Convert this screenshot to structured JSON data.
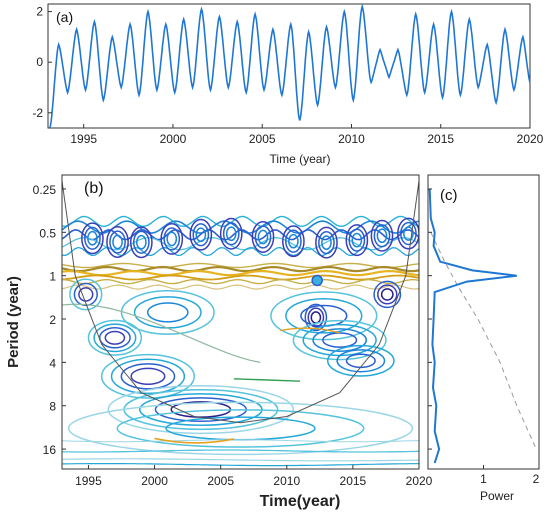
{
  "chart_data": [
    {
      "type": "line",
      "panel_label": "(a)",
      "xlabel": "Time (year)",
      "ylabel": "",
      "xlim": [
        1993,
        2020
      ],
      "ylim": [
        -2.6,
        2.3
      ],
      "x_ticks": [
        "1995",
        "2000",
        "2005",
        "2010",
        "2015",
        "2020"
      ],
      "y_ticks": [
        "2",
        "0",
        "-2"
      ],
      "color": "#1f77d4",
      "cycle_period_years": 1,
      "annual_peaks": [
        {
          "x": 1993.6,
          "y": 0.7
        },
        {
          "x": 1994.6,
          "y": 1.3
        },
        {
          "x": 1995.6,
          "y": 1.6
        },
        {
          "x": 1996.6,
          "y": 1.0
        },
        {
          "x": 1997.6,
          "y": 1.5
        },
        {
          "x": 1998.6,
          "y": 2.0
        },
        {
          "x": 1999.6,
          "y": 1.5
        },
        {
          "x": 2000.6,
          "y": 1.7
        },
        {
          "x": 2001.6,
          "y": 2.1
        },
        {
          "x": 2002.6,
          "y": 1.8
        },
        {
          "x": 2003.6,
          "y": 1.6
        },
        {
          "x": 2004.6,
          "y": 1.9
        },
        {
          "x": 2005.6,
          "y": 1.3
        },
        {
          "x": 2006.6,
          "y": 1.5
        },
        {
          "x": 2007.6,
          "y": 1.2
        },
        {
          "x": 2008.6,
          "y": 1.4
        },
        {
          "x": 2009.6,
          "y": 2.0
        },
        {
          "x": 2010.6,
          "y": 2.2
        },
        {
          "x": 2011.6,
          "y": 0.5
        },
        {
          "x": 2012.6,
          "y": 0.5
        },
        {
          "x": 2013.6,
          "y": 1.9
        },
        {
          "x": 2014.6,
          "y": 1.5
        },
        {
          "x": 2015.6,
          "y": 2.0
        },
        {
          "x": 2016.6,
          "y": 1.7
        },
        {
          "x": 2017.6,
          "y": 0.7
        },
        {
          "x": 2018.6,
          "y": 1.3
        },
        {
          "x": 2019.6,
          "y": 1.0
        }
      ],
      "annual_troughs": [
        {
          "x": 1993.1,
          "y": -2.6
        },
        {
          "x": 1994.1,
          "y": -1.2
        },
        {
          "x": 1995.1,
          "y": -1.1
        },
        {
          "x": 1996.1,
          "y": -1.5
        },
        {
          "x": 1997.1,
          "y": -1.0
        },
        {
          "x": 1998.1,
          "y": -1.3
        },
        {
          "x": 1999.1,
          "y": -1.1
        },
        {
          "x": 2000.1,
          "y": -1.2
        },
        {
          "x": 2001.1,
          "y": -1.0
        },
        {
          "x": 2002.1,
          "y": -1.1
        },
        {
          "x": 2003.1,
          "y": -1.0
        },
        {
          "x": 2004.1,
          "y": -1.2
        },
        {
          "x": 2005.1,
          "y": -1.1
        },
        {
          "x": 2006.1,
          "y": -1.3
        },
        {
          "x": 2007.1,
          "y": -2.3
        },
        {
          "x": 2008.1,
          "y": -1.7
        },
        {
          "x": 2009.1,
          "y": -1.0
        },
        {
          "x": 2010.1,
          "y": -1.5
        },
        {
          "x": 2011.1,
          "y": -0.8
        },
        {
          "x": 2012.1,
          "y": -0.6
        },
        {
          "x": 2013.1,
          "y": -1.3
        },
        {
          "x": 2014.1,
          "y": -1.2
        },
        {
          "x": 2015.1,
          "y": -1.4
        },
        {
          "x": 2016.1,
          "y": -1.3
        },
        {
          "x": 2017.1,
          "y": -1.0
        },
        {
          "x": 2018.1,
          "y": -1.6
        },
        {
          "x": 2019.1,
          "y": -1.1
        },
        {
          "x": 2020.0,
          "y": -0.8
        }
      ]
    },
    {
      "type": "contour",
      "panel_label": "(b)",
      "xlabel": "Time(year)",
      "ylabel": "Period (year)",
      "xlim": [
        1993,
        2020
      ],
      "ylim": [
        0.2,
        22
      ],
      "y_scale": "log2",
      "y_reversed": true,
      "x_ticks": [
        "1995",
        "2000",
        "2005",
        "2010",
        "2015",
        "2020"
      ],
      "y_ticks": [
        "0.25",
        "0.5",
        "1",
        "2",
        "4",
        "8",
        "16"
      ],
      "colormap": "parula",
      "features": [
        {
          "desc": "strong annual band",
          "period": 1.0,
          "x_range": [
            1993,
            2020
          ],
          "color": "#e6b422"
        },
        {
          "desc": "semi-annual cells",
          "period": 0.5,
          "x_range": [
            1993,
            2020
          ],
          "color": "#2a6fd6"
        },
        {
          "desc": "quasi-biennial cells",
          "period": 2.0,
          "x_range": [
            1994,
            2019
          ],
          "color": "#2bb3d6"
        },
        {
          "desc": "interannual cells",
          "period": 4.5,
          "x_range": [
            1996,
            2018
          ],
          "color": "#1f9fd8"
        },
        {
          "desc": "decadal band",
          "period": 8.5,
          "x_range": [
            1998,
            2010
          ],
          "color": "#3060c8"
        }
      ],
      "cone_of_influence": [
        {
          "x": 1993.0,
          "period": 0.22
        },
        {
          "x": 1994.0,
          "period": 1.0
        },
        {
          "x": 1996.0,
          "period": 3.0
        },
        {
          "x": 1999.0,
          "period": 6.5
        },
        {
          "x": 2003.0,
          "period": 9.5
        },
        {
          "x": 2006.5,
          "period": 10.5
        },
        {
          "x": 2010.0,
          "period": 9.5
        },
        {
          "x": 2014.0,
          "period": 6.5
        },
        {
          "x": 2017.0,
          "period": 3.0
        },
        {
          "x": 2019.0,
          "period": 1.0
        },
        {
          "x": 2020.0,
          "period": 0.22
        }
      ]
    },
    {
      "type": "line",
      "panel_label": "(c)",
      "xlabel": "Power",
      "ylabel": "",
      "xlim": [
        0,
        2
      ],
      "x_ticks": [
        "1",
        "2"
      ],
      "y_scale": "log2",
      "y_reversed": true,
      "series": [
        {
          "role": "global wavelet power",
          "style": "solid",
          "color": "#1f77d4",
          "points": [
            {
              "power": 0.03,
              "period": 0.25
            },
            {
              "power": 0.05,
              "period": 0.4
            },
            {
              "power": 0.12,
              "period": 0.5
            },
            {
              "power": 0.1,
              "period": 0.62
            },
            {
              "power": 0.22,
              "period": 0.8
            },
            {
              "power": 0.8,
              "period": 0.92
            },
            {
              "power": 1.6,
              "period": 1.0
            },
            {
              "power": 0.7,
              "period": 1.1
            },
            {
              "power": 0.12,
              "period": 1.3
            },
            {
              "power": 0.1,
              "period": 2.0
            },
            {
              "power": 0.08,
              "period": 3.0
            },
            {
              "power": 0.12,
              "period": 4.0
            },
            {
              "power": 0.09,
              "period": 6.0
            },
            {
              "power": 0.15,
              "period": 8.0
            },
            {
              "power": 0.12,
              "period": 12.0
            },
            {
              "power": 0.2,
              "period": 16.0
            },
            {
              "power": 0.12,
              "period": 20.0
            }
          ]
        },
        {
          "role": "significance level",
          "style": "dashed",
          "color": "#999999",
          "points": [
            {
              "power": 0.05,
              "period": 0.5
            },
            {
              "power": 0.3,
              "period": 0.8
            },
            {
              "power": 0.55,
              "period": 1.2
            },
            {
              "power": 0.9,
              "period": 2.0
            },
            {
              "power": 1.3,
              "period": 4.0
            },
            {
              "power": 1.6,
              "period": 8.0
            },
            {
              "power": 1.95,
              "period": 16.0
            }
          ]
        }
      ]
    }
  ]
}
